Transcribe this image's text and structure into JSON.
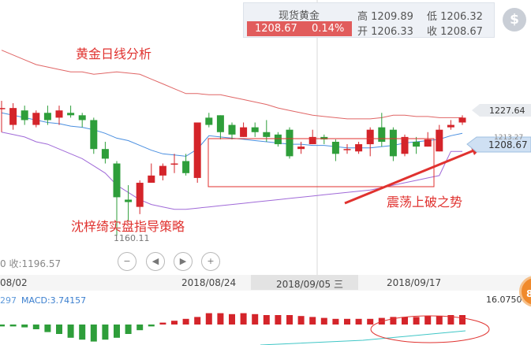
{
  "quote": {
    "name": "现货黄金",
    "price": "1208.67",
    "change_pct": "0.14%",
    "high_label": "高",
    "high": "1209.89",
    "low_label": "低",
    "low": "1206.32",
    "open_label": "开",
    "open": "1206.33",
    "close_label": "收",
    "close": "1208.67",
    "currency_symbol": "$"
  },
  "annotations": {
    "title": "黄金日线分析",
    "strategy": "沈梓绮实盘指导策略",
    "breakout": "震荡上破之势",
    "low_value": "1160.11",
    "left_stat": "0 收:1196.57"
  },
  "price_axis": {
    "upper_band": "1227.64",
    "ma_value": "1213.27",
    "current": "1208.67"
  },
  "dates": {
    "d1": "08/02",
    "d2": "2018/08/24",
    "d3": "2018/09/05 三",
    "d4": "2018/09/17"
  },
  "macd": {
    "left_value": "297",
    "label": "MACD:3.74157",
    "right_value": "16.0750"
  },
  "controls": {
    "zoom_out": "−",
    "prev": "◀",
    "next": "▶",
    "zoom_in": "+"
  },
  "float_button": "8",
  "colors": {
    "up": "#d4242a",
    "down": "#2e9e3a",
    "ma": "#4a8fe0",
    "upper_band": "#e06666",
    "lower_band": "#a06ad8",
    "annotation": "#e0322f",
    "macd_signal": "#3fc6c6"
  },
  "chart_data": {
    "type": "candlestick",
    "title": "黄金日线分析",
    "candles": [
      [
        1213,
        1213,
        1203,
        1216
      ],
      [
        1206,
        1213,
        1204,
        1215
      ],
      [
        1212,
        1208,
        1206,
        1214
      ],
      [
        1206,
        1211,
        1205,
        1212
      ],
      [
        1211,
        1208,
        1206,
        1214
      ],
      [
        1209,
        1212,
        1206,
        1214
      ],
      [
        1211,
        1210,
        1209,
        1214
      ],
      [
        1210,
        1208,
        1205,
        1211
      ],
      [
        1208,
        1196,
        1194,
        1209
      ],
      [
        1196,
        1192,
        1190,
        1199
      ],
      [
        1190,
        1176,
        1160,
        1191
      ],
      [
        1175,
        1174,
        1166,
        1181
      ],
      [
        1172,
        1182,
        1169,
        1183
      ],
      [
        1182,
        1185,
        1182,
        1190
      ],
      [
        1185,
        1189,
        1183,
        1190
      ],
      [
        1190,
        1190,
        1186,
        1194
      ],
      [
        1191,
        1186,
        1185,
        1194
      ],
      [
        1184,
        1207,
        1182,
        1207
      ],
      [
        1209,
        1206,
        1205,
        1211
      ],
      [
        1210,
        1203,
        1200,
        1210
      ],
      [
        1206,
        1202,
        1200,
        1207
      ],
      [
        1201,
        1205,
        1201,
        1207
      ],
      [
        1205,
        1203,
        1201,
        1207
      ],
      [
        1203,
        1201,
        1199,
        1208
      ],
      [
        1202,
        1198,
        1197,
        1203
      ],
      [
        1204,
        1193,
        1192,
        1205
      ],
      [
        1196,
        1197,
        1194,
        1199
      ],
      [
        1198,
        1201,
        1198,
        1204
      ],
      [
        1201,
        1200,
        1198,
        1202
      ],
      [
        1199,
        1194,
        1191,
        1200
      ],
      [
        1196,
        1196,
        1194,
        1198
      ],
      [
        1195,
        1198,
        1194,
        1199
      ],
      [
        1198,
        1204,
        1193,
        1205
      ],
      [
        1205,
        1199,
        1197,
        1211
      ],
      [
        1204,
        1193,
        1191,
        1205
      ],
      [
        1194,
        1201,
        1193,
        1202
      ],
      [
        1199,
        1197,
        1194,
        1201
      ],
      [
        1197,
        1200,
        1197,
        1203
      ],
      [
        1195,
        1204,
        1195,
        1206
      ],
      [
        1205,
        1206,
        1204,
        1208
      ],
      [
        1207,
        1209,
        1206,
        1210
      ]
    ],
    "ma": [
      1211,
      1210,
      1209,
      1208,
      1207,
      1206.5,
      1205.5,
      1205,
      1204,
      1202.5,
      1200.5,
      1199.5,
      1197.5,
      1195.5,
      1194,
      1193.5,
      1193,
      1196,
      1201.5,
      1201,
      1200.5,
      1200,
      1199.5,
      1199,
      1198.5,
      1198,
      1198,
      1197.5,
      1197.5,
      1197,
      1196.5,
      1196.5,
      1196.5,
      1197,
      1197.5,
      1198.5,
      1199,
      1199.5,
      1200,
      1201.5,
      1202.5
    ],
    "upper_band": [
      1237,
      1235,
      1233,
      1231,
      1230,
      1229,
      1228,
      1228,
      1227,
      1227.5,
      1228,
      1227.5,
      1227,
      1225,
      1223,
      1221,
      1219,
      1219,
      1218.5,
      1218.5,
      1217.5,
      1216.5,
      1215.5,
      1214.5,
      1213,
      1212,
      1211,
      1210,
      1209.5,
      1209,
      1208.5,
      1208.5,
      1208.5,
      1209,
      1210,
      1210,
      1209.5,
      1209.5,
      1209,
      1209,
      1209
    ],
    "lower_band": [
      1203,
      1202,
      1201,
      1199,
      1198,
      1196,
      1194,
      1192,
      1189,
      1186,
      1181,
      1178,
      1175,
      1173,
      1172,
      1171,
      1171,
      1171.5,
      1172,
      1172.5,
      1173,
      1173.5,
      1174,
      1174.5,
      1175,
      1175.5,
      1176,
      1176.5,
      1177,
      1177.5,
      1178,
      1178.5,
      1179,
      1180,
      1181,
      1182,
      1183,
      1184,
      1185,
      1195,
      1195
    ],
    "macd_hist": [
      -0.2,
      -0.2,
      -0.3,
      -0.5,
      -0.8,
      -1.0,
      -1.4,
      -1.6,
      -1.8,
      -1.6,
      -1.4,
      -1.0,
      -0.6,
      -0.2,
      0.2,
      0.4,
      0.6,
      0.8,
      1.2,
      1.2,
      1.1,
      1.2,
      1.1,
      1.0,
      1.0,
      1.0,
      0.9,
      0.8,
      0.7,
      0.6,
      0.6,
      0.6,
      0.6,
      0.7,
      0.8,
      0.8,
      0.8,
      0.9,
      0.9,
      1.0,
      1.0
    ],
    "ylim": [
      1150,
      1248
    ]
  }
}
